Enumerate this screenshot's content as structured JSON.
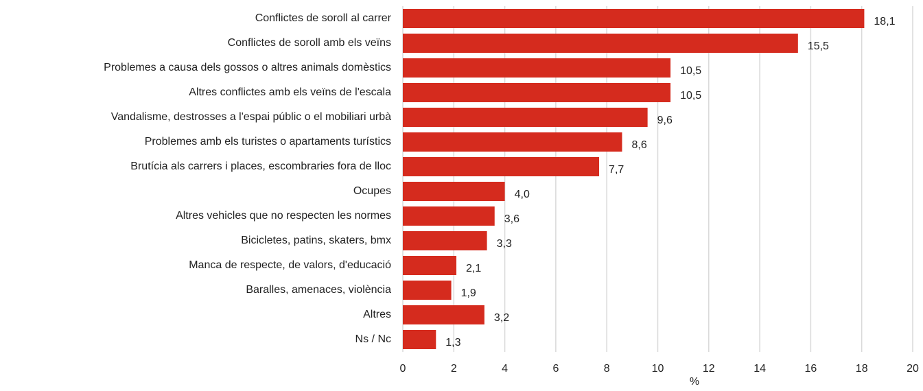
{
  "chart_data": {
    "type": "barh",
    "xlabel": "%",
    "categories": [
      "Conflictes de soroll al carrer",
      "Conflictes de soroll amb els veïns",
      "Problemes a causa dels gossos o altres animals domèstics",
      "Altres conflictes amb els veïns de l'escala",
      "Vandalisme, destrosses a l'espai públic o el mobiliari urbà",
      "Problemes amb els turistes o apartaments turístics",
      "Brutícia als carrers i places, escombraries fora de lloc",
      "Ocupes",
      "Altres vehicles que no respecten les normes",
      "Bicicletes, patins, skaters, bmx",
      "Manca de respecte, de valors, d'educació",
      "Baralles, amenaces, violència",
      "Altres",
      "Ns / Nc"
    ],
    "values": [
      18.1,
      15.5,
      10.5,
      10.5,
      9.6,
      8.6,
      7.7,
      4.0,
      3.6,
      3.3,
      2.1,
      1.9,
      3.2,
      1.3
    ],
    "value_labels": [
      "18,1",
      "15,5",
      "10,5",
      "10,5",
      "9,6",
      "8,6",
      "7,7",
      "4,0",
      "3,6",
      "3,3",
      "2,1",
      "1,9",
      "3,2",
      "1,3"
    ],
    "color": "#d52b1e",
    "xlim": [
      0,
      20
    ],
    "xticks": [
      0,
      2,
      4,
      6,
      8,
      10,
      12,
      14,
      16,
      18,
      20
    ],
    "grid": true
  }
}
